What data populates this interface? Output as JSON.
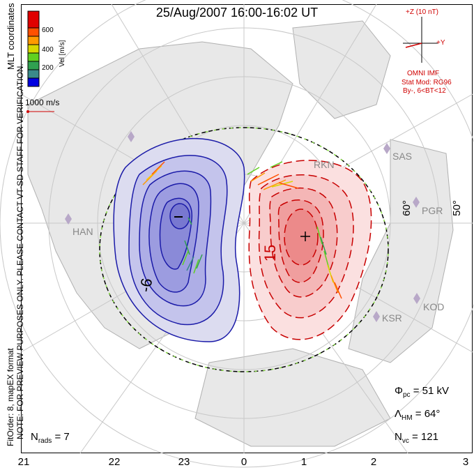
{
  "title": "25/Aug/2007 16:00-16:02 UT",
  "side_notes": {
    "mlt_coordinates": "MLT coordinates",
    "preview": "NOTE: FOR PREVIEW PURPOSES ONLY. PLEASE CONTACT VT-SD STAFF FOR VERIFICATION.",
    "fit": "FitOrder: 8, mapEX format"
  },
  "colorbar": {
    "ticks": [
      "600",
      "400",
      "200"
    ],
    "label": "Vel [m/s]",
    "colors": [
      "#0000e0",
      "#3a8a8a",
      "#30a050",
      "#60d020",
      "#d8d800",
      "#ff9a00",
      "#ff5000",
      "#e00000"
    ]
  },
  "velocity_scale": "1000 m/s",
  "imf": {
    "plus_z": "+Z (10 nT)",
    "plus_y": "+Y",
    "omni": "OMNI IMF",
    "stat_mod": "Stat Mod: RG96",
    "by_bt": "By-, 6<BT<12"
  },
  "mlt_labels": [
    "21",
    "22",
    "23",
    "0",
    "1",
    "2",
    "3"
  ],
  "lat_labels": [
    "60°",
    "50°"
  ],
  "stations": [
    "SAS",
    "PGR",
    "KOD",
    "KSR",
    "RKN",
    "HAN"
  ],
  "contour_labels": {
    "neg": "-6",
    "pos": "15"
  },
  "stats": {
    "phi_pc": "51",
    "phi_pc_unit": "kV",
    "lambda_hm": "64°",
    "n_vc": "121",
    "n_rads": "7"
  },
  "colors": {
    "neg": "#1a1aa8",
    "pos": "#c80000",
    "imf": "#d00000",
    "grid": "#c8c8c8"
  }
}
